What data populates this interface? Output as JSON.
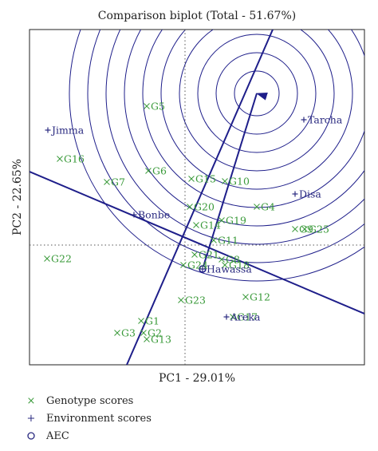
{
  "chart_data": {
    "type": "scatter",
    "title": "Comparison biplot (Total - 51.67%)",
    "xlabel": "PC1 - 29.01%",
    "ylabel": "PC2 - 22.65%",
    "xlim": [
      -19.5,
      22.5
    ],
    "ylim": [
      -15,
      27
    ],
    "grid": false,
    "colors": {
      "genotype": "#3a9a3a",
      "environment": "#2a2a80",
      "axis_line": "#1e1e8a",
      "circles": "#1e1e8a"
    },
    "series": [
      {
        "name": "Genotype scores",
        "marker": "x",
        "points": [
          {
            "label": "G1",
            "x": -5.5,
            "y": -9.5
          },
          {
            "label": "G2",
            "x": -5.2,
            "y": -11.0
          },
          {
            "label": "G3",
            "x": -8.5,
            "y": -11.0
          },
          {
            "label": "G5",
            "x": -4.8,
            "y": 17.4
          },
          {
            "label": "G6",
            "x": -4.6,
            "y": 9.3
          },
          {
            "label": "G7",
            "x": -9.8,
            "y": 7.9
          },
          {
            "label": "G8",
            "x": 4.6,
            "y": -1.8
          },
          {
            "label": "G10",
            "x": 5.0,
            "y": 8.0
          },
          {
            "label": "G11",
            "x": 3.6,
            "y": 0.6
          },
          {
            "label": "G12",
            "x": 7.6,
            "y": -6.5
          },
          {
            "label": "G13",
            "x": -4.8,
            "y": -11.8
          },
          {
            "label": "G14",
            "x": 1.4,
            "y": 2.5
          },
          {
            "label": "G15",
            "x": 0.8,
            "y": 8.3
          },
          {
            "label": "G16",
            "x": -15.7,
            "y": 10.8
          },
          {
            "label": "G19",
            "x": 4.6,
            "y": 3.1
          },
          {
            "label": "G20",
            "x": 0.6,
            "y": 4.8
          },
          {
            "label": "G21",
            "x": 1.2,
            "y": -1.2
          },
          {
            "label": "G22",
            "x": -17.3,
            "y": -1.7
          },
          {
            "label": "G23",
            "x": -0.5,
            "y": -6.9
          },
          {
            "label": "G24",
            "x": -0.2,
            "y": -2.5
          },
          {
            "label": "G25",
            "x": 15.0,
            "y": 2.0
          },
          {
            "label": "G4",
            "x": 9.0,
            "y": 4.8
          },
          {
            "label": "G17",
            "x": 6.0,
            "y": -9.0
          },
          {
            "label": "G18",
            "x": 5.0,
            "y": -2.5
          },
          {
            "label": "G9",
            "x": 13.8,
            "y": 2.0
          }
        ]
      },
      {
        "name": "Environment scores",
        "marker": "+",
        "points": [
          {
            "label": "Jimma",
            "x": -17.2,
            "y": 14.4
          },
          {
            "label": "Tarcha",
            "x": 14.9,
            "y": 15.7
          },
          {
            "label": "Disa",
            "x": 13.8,
            "y": 6.4
          },
          {
            "label": "Bonbe",
            "x": -6.4,
            "y": 3.8
          },
          {
            "label": "Hawassa",
            "x": 2.2,
            "y": -3.0
          },
          {
            "label": "Areka",
            "x": 5.2,
            "y": -9.0
          }
        ]
      }
    ],
    "aec": {
      "x": 2.2,
      "y": -3.0,
      "arrow_tip": {
        "x": 9.0,
        "y": 19.0
      },
      "line_from": {
        "x": -7.3,
        "y": -15.0
      },
      "line_to": {
        "x": 11.0,
        "y": 27.0
      },
      "perp_from": {
        "x": -19.5,
        "y": 9.2
      },
      "perp_to": {
        "x": 22.5,
        "y": -8.6
      },
      "circle_radii": [
        2.8,
        5.1,
        7.4,
        9.7,
        12.0,
        14.3,
        16.6,
        18.9,
        21.2,
        23.5
      ]
    },
    "legend": {
      "placement": "bottom-left",
      "entries": [
        {
          "symbol": "×",
          "label": "Genotype scores"
        },
        {
          "symbol": "+",
          "label": "Environment scores"
        },
        {
          "symbol": "○",
          "label": "AEC"
        }
      ]
    }
  }
}
